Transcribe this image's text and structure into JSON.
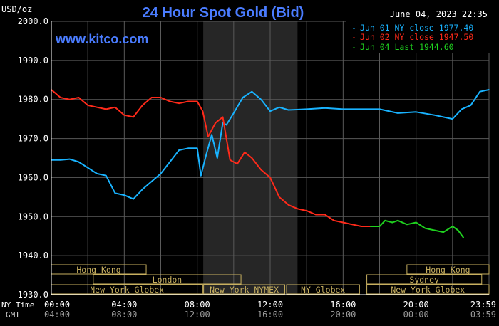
{
  "header": {
    "unit": "USD/oz",
    "title": "24 Hour Spot Gold (Bid)",
    "timestamp": "June 04, 2023 22:35",
    "watermark": "www.kitco.com"
  },
  "legend": [
    {
      "label": "Jun 01 NY close 1977.40",
      "color": "#19b3ff"
    },
    {
      "label": "Jun 02 NY close 1947.50",
      "color": "#ff2a1a"
    },
    {
      "label": "Jun 04 Last 1944.60",
      "color": "#1fd21f"
    }
  ],
  "time_axis": {
    "ny_label": "NY Time",
    "gmt_label": "GMT",
    "ny_ticks": [
      "00:00",
      "04:00",
      "08:00",
      "12:00",
      "16:00",
      "20:00",
      "23:59"
    ],
    "gmt_ticks": [
      "04:00",
      "08:00",
      "12:00",
      "16:00",
      "20:00",
      "00:00",
      "03:59"
    ]
  },
  "sessions": [
    {
      "name": "Hong Kong",
      "row": 1
    },
    {
      "name": "London",
      "row": 2
    },
    {
      "name": "New York Globex",
      "row": 3
    },
    {
      "name": "New York NYMEX",
      "row": 3
    },
    {
      "name": "NY Globex",
      "row": 3
    },
    {
      "name": "Sydney",
      "row": 2
    },
    {
      "name": "Hong Kong",
      "row": 1
    },
    {
      "name": "New York Globex",
      "row": 3
    }
  ],
  "colors": {
    "background": "#000000",
    "grid": "#5a5a5a",
    "shaded_region": "#262626",
    "axis_text": "#ffffff",
    "title": "#4a7cff",
    "session_box": "#c8b060",
    "jun01": "#19b3ff",
    "jun02": "#ff2a1a",
    "jun04": "#1fd21f"
  },
  "chart_data": {
    "type": "line",
    "title": "24 Hour Spot Gold (Bid)",
    "ylabel": "USD/oz",
    "xlabel": "",
    "ylim": [
      1930,
      2000
    ],
    "xlim_hours": [
      0,
      24
    ],
    "yticks": [
      "2000.0",
      "1990.0",
      "1980.0",
      "1970.0",
      "1960.0",
      "1950.0",
      "1940.0",
      "1930.0"
    ],
    "grid": true,
    "legend_position": "top-right",
    "series": [
      {
        "name": "Jun 01 NY close 1977.40",
        "x": [
          0,
          0.5,
          1,
          1.5,
          2,
          2.5,
          3,
          3.5,
          4,
          4.5,
          5,
          5.5,
          6,
          6.5,
          7,
          7.5,
          8,
          8.2,
          8.5,
          8.8,
          9.1,
          9.4,
          9.6,
          10,
          10.5,
          11,
          11.5,
          12,
          12.5,
          13,
          14,
          15,
          16,
          17,
          18,
          19,
          20,
          21,
          22,
          22.5,
          23,
          23.5,
          24
        ],
        "y": [
          1964.5,
          1964.5,
          1964.7,
          1964.0,
          1962.5,
          1961.0,
          1960.5,
          1956.0,
          1955.5,
          1954.5,
          1957.0,
          1959.0,
          1961.0,
          1964.0,
          1967.0,
          1967.5,
          1967.5,
          1960.5,
          1966.0,
          1971.0,
          1965.0,
          1974.0,
          1973.5,
          1976.5,
          1980.5,
          1982.0,
          1980.0,
          1977.0,
          1978.0,
          1977.3,
          1977.5,
          1977.8,
          1977.5,
          1977.5,
          1977.5,
          1976.5,
          1976.8,
          1976.0,
          1975.0,
          1977.5,
          1978.5,
          1982.0,
          1982.5
        ]
      },
      {
        "name": "Jun 02 NY close 1947.50",
        "x": [
          0,
          0.5,
          1,
          1.5,
          2,
          2.5,
          3,
          3.5,
          4,
          4.5,
          5,
          5.5,
          6,
          6.5,
          7,
          7.5,
          8,
          8.3,
          8.6,
          9,
          9.4,
          9.8,
          10.2,
          10.6,
          11,
          11.5,
          12,
          12.5,
          13,
          13.5,
          14,
          14.5,
          15,
          15.5,
          16,
          16.5,
          17,
          17.5
        ],
        "y": [
          1982.5,
          1980.5,
          1980.0,
          1980.5,
          1978.5,
          1978.0,
          1977.5,
          1978.0,
          1976.0,
          1975.5,
          1978.5,
          1980.5,
          1980.5,
          1979.5,
          1979.0,
          1979.5,
          1979.5,
          1977.0,
          1970.5,
          1974.0,
          1975.5,
          1964.5,
          1963.5,
          1966.5,
          1965.0,
          1962.0,
          1960.0,
          1955.0,
          1953.0,
          1952.0,
          1951.5,
          1950.5,
          1950.5,
          1949.0,
          1948.5,
          1948.0,
          1947.5,
          1947.5
        ]
      },
      {
        "name": "Jun 04 Last 1944.60",
        "x": [
          17.5,
          18,
          18.3,
          18.7,
          19,
          19.5,
          20,
          20.5,
          21,
          21.5,
          22,
          22.3,
          22.6
        ],
        "y": [
          1947.5,
          1947.5,
          1949.0,
          1948.5,
          1949.0,
          1948.0,
          1948.5,
          1947.0,
          1946.5,
          1946.0,
          1947.5,
          1946.5,
          1944.6
        ]
      }
    ]
  }
}
